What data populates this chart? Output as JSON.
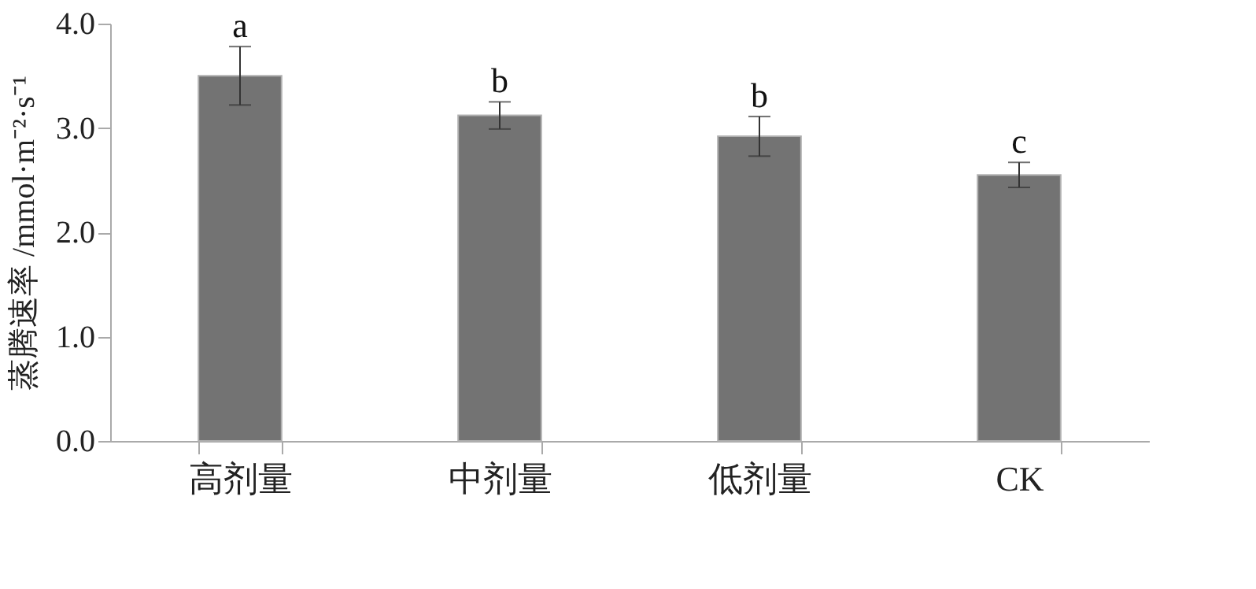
{
  "chart_data": {
    "type": "bar",
    "ylabel": "蒸腾速率 /mmol·m⁻²·s⁻¹",
    "categories": [
      "高剂量",
      "中剂量",
      "低剂量",
      "CK"
    ],
    "values": [
      3.5,
      3.12,
      2.92,
      2.55
    ],
    "errors": [
      0.28,
      0.13,
      0.19,
      0.12
    ],
    "color": "#737373",
    "ylim": [
      0,
      4
    ],
    "yticks": [
      {
        "value": 0,
        "label": "0.0"
      },
      {
        "value": 1,
        "label": "1.0"
      },
      {
        "value": 2,
        "label": "2.0"
      },
      {
        "value": 3,
        "label": "3.0"
      },
      {
        "value": 4,
        "label": "4.0"
      }
    ],
    "grid": false,
    "annotations": [
      {
        "text": "a",
        "x": "高剂量",
        "y": 3.78
      },
      {
        "text": "b",
        "x": "中剂量",
        "y": 3.25
      },
      {
        "text": "b",
        "x": "低剂量",
        "y": 3.11
      },
      {
        "text": "c",
        "x": "CK",
        "y": 2.67
      }
    ]
  }
}
